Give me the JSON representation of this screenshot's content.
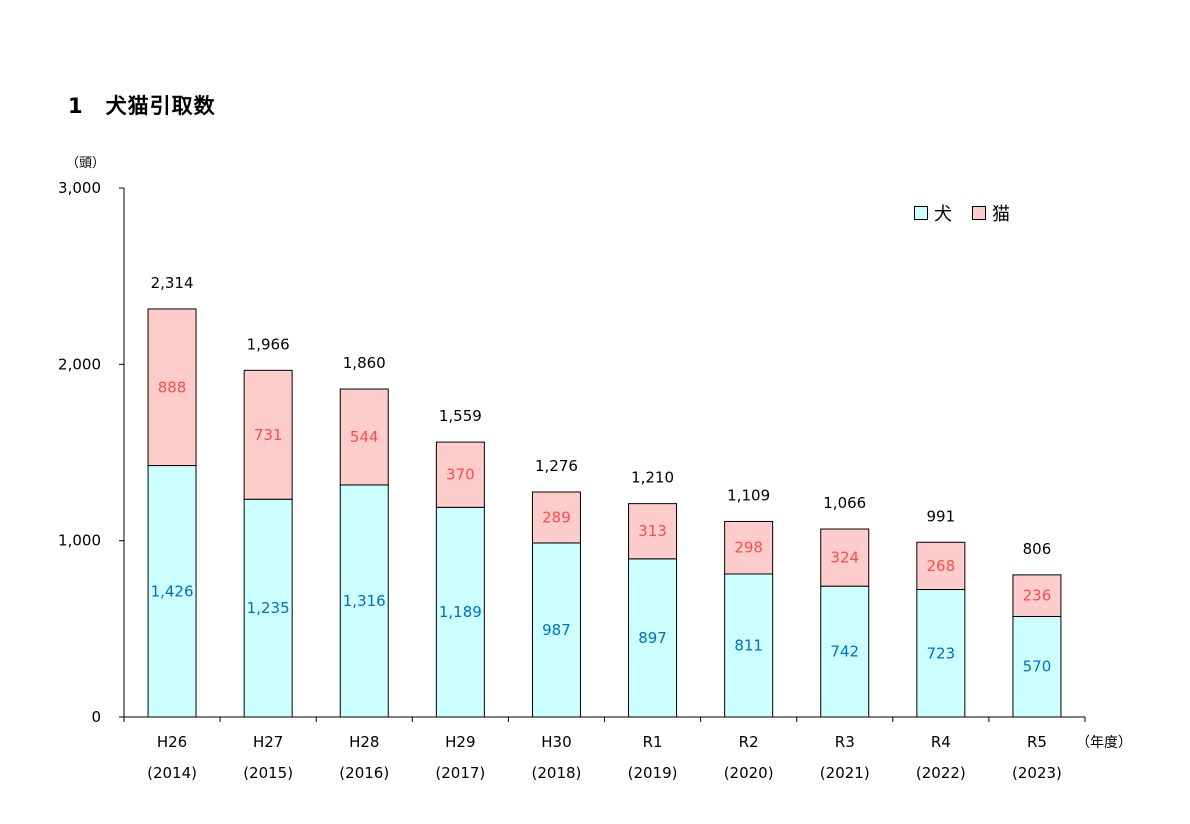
{
  "title": "1　犬猫引取数",
  "chart_data": {
    "type": "bar",
    "stacked": true,
    "ylabel": "（頭）",
    "xlabel": "（年度）",
    "ylim": [
      0,
      3000
    ],
    "yticks": [
      "0",
      "1,000",
      "2,000",
      "3,000"
    ],
    "ytick_values": [
      0,
      1000,
      2000,
      3000
    ],
    "categories": [
      "H26",
      "H27",
      "H28",
      "H29",
      "H30",
      "R1",
      "R2",
      "R3",
      "R4",
      "R5"
    ],
    "category_years": [
      "(2014)",
      "(2015)",
      "(2016)",
      "(2017)",
      "(2018)",
      "(2019)",
      "(2020)",
      "(2021)",
      "(2022)",
      "(2023)"
    ],
    "series": [
      {
        "name": "犬",
        "values": [
          1426,
          1235,
          1316,
          1189,
          987,
          897,
          811,
          742,
          723,
          570
        ],
        "labels": [
          "1,426",
          "1,235",
          "1,316",
          "1,189",
          "987",
          "897",
          "811",
          "742",
          "723",
          "570"
        ],
        "color": "#ccffff",
        "label_color": "#0070c0"
      },
      {
        "name": "猫",
        "values": [
          888,
          731,
          544,
          370,
          289,
          313,
          298,
          324,
          268,
          236
        ],
        "labels": [
          "888",
          "731",
          "544",
          "370",
          "289",
          "313",
          "298",
          "324",
          "268",
          "236"
        ],
        "color": "#ffcccc",
        "label_color": "#ff4b4b"
      }
    ],
    "totals": [
      2314,
      1966,
      1860,
      1559,
      1276,
      1210,
      1109,
      1066,
      991,
      806
    ],
    "total_labels": [
      "2,314",
      "1,966",
      "1,860",
      "1,559",
      "1,276",
      "1,210",
      "1,109",
      "1,066",
      "991",
      "806"
    ],
    "legend_position": "top-right",
    "grid": false
  }
}
